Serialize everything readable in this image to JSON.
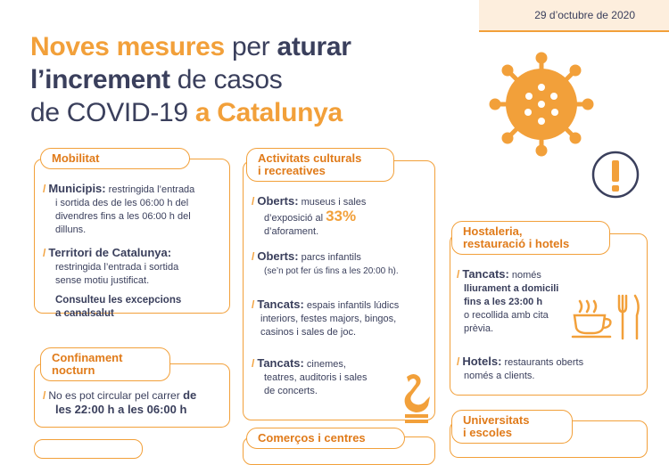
{
  "date": "29 d’octubre de 2020",
  "title": {
    "w1": "Noves mesures",
    "w2": " per ",
    "w3": "aturar",
    "w4": "l’increment",
    "w5": " de casos",
    "w6": "de COVID-19 ",
    "w7": "a Catalunya"
  },
  "mobilitat": {
    "label": "Mobilitat",
    "i1_bold": "Municipis:",
    "i1_text": " restringida l’entrada",
    "i1_l2": "i sortida des de les 06:00 h del",
    "i1_l3": "divendres fins a les 06:00 h del",
    "i1_l4": "dilluns.",
    "i2_bold": "Territori de Catalunya:",
    "i2_l2": "restringida l’entrada i sortida",
    "i2_l3": "sense motiu justificat.",
    "i3_l1": "Consulteu les excepcions",
    "i3_l2": "a canalsalut"
  },
  "confinament": {
    "label_l1": "Confinament",
    "label_l2": "nocturn",
    "text": "No es pot circular pel carrer ",
    "bold1": "de",
    "bold2": "les 22:00 h a les 06:00 h"
  },
  "activitats": {
    "label_l1": "Activitats culturals",
    "label_l2": "i recreatives",
    "i1_bold": "Oberts:",
    "i1_text": " museus i sales",
    "i1_l2": "d’exposició al ",
    "i1_big": "33%",
    "i1_l3": "d’aforament.",
    "i2_bold": "Oberts:",
    "i2_text": " parcs infantils",
    "i2_l2": "(se’n pot fer ús fins a les 20:00 h).",
    "i3_bold": "Tancats:",
    "i3_text": " espais infantils lúdics",
    "i3_l2": "interiors, festes majors, bingos,",
    "i3_l3": "casinos i sales de joc.",
    "i4_bold": "Tancats:",
    "i4_text": " cinemes,",
    "i4_l2": "teatres, auditoris i sales",
    "i4_l3": "de concerts."
  },
  "comercos": {
    "label": "Comerços i centres"
  },
  "hostaleria": {
    "label_l1": "Hostaleria,",
    "label_l2": "restauració i hotels",
    "i1_bold": "Tancats:",
    "i1_text": " només",
    "i1_l2": "lliurament a domicili",
    "i1_l3": "fins a les 23:00 h",
    "i1_l4": "o recollida amb cita",
    "i1_l5": "prèvia.",
    "i2_bold": "Hotels:",
    "i2_text": " restaurants oberts",
    "i2_l2": "només a clients."
  },
  "universitats": {
    "label_l1": "Universitats",
    "label_l2": "i escoles"
  },
  "icons": [
    "virus-icon",
    "warning-icon",
    "cup-icon",
    "cutlery-icon",
    "swan-icon"
  ],
  "colors": {
    "accent": "#f2a03a",
    "text": "#3a3f5c",
    "date_bg": "#fdeedd"
  }
}
